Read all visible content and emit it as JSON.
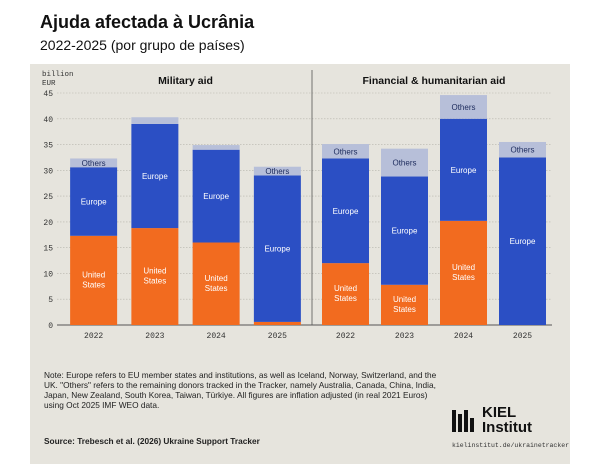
{
  "header": {
    "title": "Ajuda afectada à Ucrânia",
    "subtitle": "2022-2025 (por grupo de países)"
  },
  "chart_data": {
    "type": "bar",
    "stacked": true,
    "unit_label": "billion EUR",
    "ylim": [
      0,
      45
    ],
    "yticks": [
      0,
      5,
      10,
      15,
      20,
      25,
      30,
      35,
      40,
      45
    ],
    "grid": true,
    "colors": {
      "United States": "#f26b1f",
      "Europe": "#2b4fc4",
      "Others": "#b7bfd9"
    },
    "panels": [
      {
        "title": "Military aid",
        "categories": [
          "2022",
          "2023",
          "2024",
          "2025"
        ],
        "series": [
          {
            "name": "United States",
            "values": [
              17.3,
              18.8,
              16.0,
              0.6
            ]
          },
          {
            "name": "Europe",
            "values": [
              13.3,
              20.2,
              18.0,
              28.4
            ]
          },
          {
            "name": "Others",
            "values": [
              1.7,
              1.3,
              0.9,
              1.7
            ]
          }
        ]
      },
      {
        "title": "Financial & humanitarian aid",
        "categories": [
          "2022",
          "2023",
          "2024",
          "2025"
        ],
        "series": [
          {
            "name": "United States",
            "values": [
              12.0,
              7.8,
              20.2,
              0.0
            ]
          },
          {
            "name": "Europe",
            "values": [
              20.3,
              21.0,
              19.8,
              32.5
            ]
          },
          {
            "name": "Others",
            "values": [
              2.8,
              5.4,
              4.6,
              3.0
            ]
          }
        ]
      }
    ]
  },
  "note": "Note: Europe refers to EU member states and institutions, as well as Iceland, Norway, Switzerland, and the UK. \"Others\" refers to the remaining donors tracked in the Tracker, namely Australia, Canada, China, India, Japan, New Zealand, South Korea, Taiwan, Türkiye. All figures are inflation adjusted (in real 2021 Euros) using Oct 2025 IMF WEO data.",
  "source": "Source: Trebesch et al. (2026) Ukraine Support Tracker",
  "logo": {
    "name_line1": "KIEL",
    "name_line2": "Institut",
    "url": "kielinstitut.de/ukrainetracker"
  }
}
